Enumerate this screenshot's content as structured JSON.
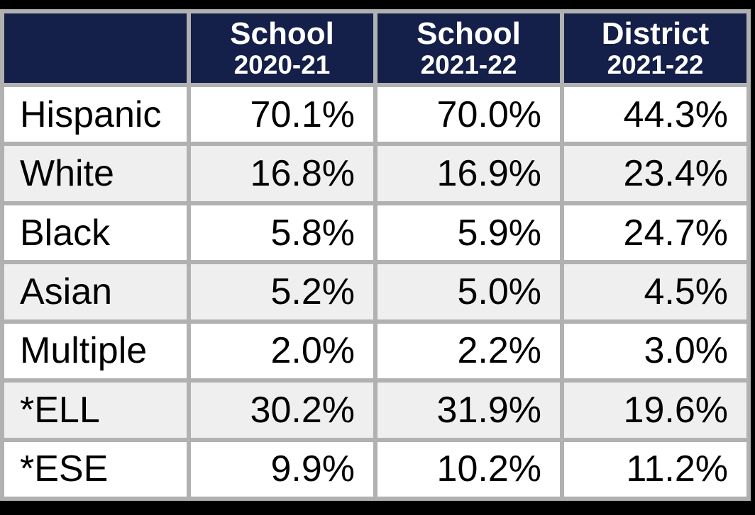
{
  "table": {
    "header": [
      {
        "title": "",
        "subtitle": ""
      },
      {
        "title": "School",
        "subtitle": "2020-21"
      },
      {
        "title": "School",
        "subtitle": "2021-22"
      },
      {
        "title": "District",
        "subtitle": "2021-22"
      }
    ],
    "rows": [
      {
        "label": "Hispanic",
        "values": [
          "70.1%",
          "70.0%",
          "44.3%"
        ]
      },
      {
        "label": "White",
        "values": [
          "16.8%",
          "16.9%",
          "23.4%"
        ]
      },
      {
        "label": "Black",
        "values": [
          "5.8%",
          "5.9%",
          "24.7%"
        ]
      },
      {
        "label": "Asian",
        "values": [
          "5.2%",
          "5.0%",
          "4.5%"
        ]
      },
      {
        "label": "Multiple",
        "values": [
          "2.0%",
          "2.2%",
          "3.0%"
        ]
      },
      {
        "label": "*ELL",
        "values": [
          "30.2%",
          "31.9%",
          "19.6%"
        ]
      },
      {
        "label": "*ESE",
        "values": [
          "9.9%",
          "10.2%",
          "11.2%"
        ]
      }
    ]
  },
  "colors": {
    "header_navy": "#141f4a",
    "grid_gray": "#b1b1b1",
    "alt_row_gray": "#efefef",
    "row_white": "#ffffff",
    "header_text": "#ffffff",
    "body_text": "#000000",
    "page_background": "#000000"
  },
  "chart_data": {
    "type": "table",
    "title": "School demographics comparison table",
    "columns": [
      "",
      "School 2020-21",
      "School 2021-22",
      "District 2021-22"
    ],
    "rows": [
      [
        "Hispanic",
        "70.1%",
        "70.0%",
        "44.3%"
      ],
      [
        "White",
        "16.8%",
        "16.9%",
        "23.4%"
      ],
      [
        "Black",
        "5.8%",
        "5.9%",
        "24.7%"
      ],
      [
        "Asian",
        "5.2%",
        "5.0%",
        "4.5%"
      ],
      [
        "Multiple",
        "2.0%",
        "2.2%",
        "3.0%"
      ],
      [
        "*ELL",
        "30.2%",
        "31.9%",
        "19.6%"
      ],
      [
        "*ESE",
        "9.9%",
        "10.2%",
        "11.2%"
      ]
    ],
    "series": [
      {
        "name": "School 2020-21",
        "values": [
          70.1,
          16.8,
          5.8,
          5.2,
          2.0,
          30.2,
          9.9
        ]
      },
      {
        "name": "School 2021-22",
        "values": [
          70.0,
          16.9,
          5.9,
          5.0,
          2.2,
          31.9,
          10.2
        ]
      },
      {
        "name": "District 2021-22",
        "values": [
          44.3,
          23.4,
          24.7,
          4.5,
          3.0,
          19.6,
          11.2
        ]
      }
    ],
    "categories": [
      "Hispanic",
      "White",
      "Black",
      "Asian",
      "Multiple",
      "*ELL",
      "*ESE"
    ]
  }
}
